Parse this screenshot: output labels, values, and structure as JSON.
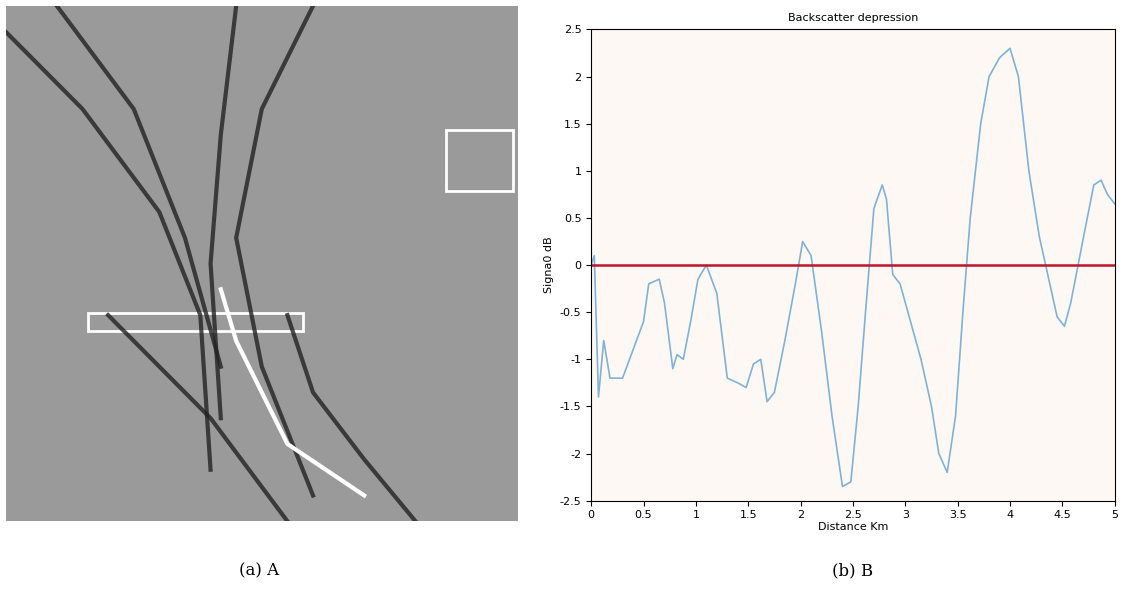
{
  "image_panel": {
    "caption": "(a) A"
  },
  "chart_data": {
    "type": "line",
    "title": "Backscatter depression",
    "caption": "(b) B",
    "x_label": "Distance Km",
    "y_label": "Signa0 dB",
    "xlim": [
      0,
      5
    ],
    "xticks": [
      0,
      0.5,
      1,
      1.5,
      2,
      2.5,
      3,
      3.5,
      4,
      4.5,
      5
    ],
    "ylim": [
      -2.5,
      2.5
    ],
    "yticks": [
      -2.5,
      -2,
      -1.5,
      -1,
      -0.5,
      0,
      0.5,
      1,
      1.5,
      2,
      2.5
    ],
    "grid": false,
    "series": [
      {
        "color": "#7fb2d8",
        "x": [
          0,
          0.03,
          0.07,
          0.12,
          0.18,
          0.3,
          0.4,
          0.5,
          0.55,
          0.65,
          0.7,
          0.78,
          0.82,
          0.88,
          0.95,
          1.02,
          1.1,
          1.2,
          1.3,
          1.4,
          1.48,
          1.55,
          1.62,
          1.68,
          1.75,
          1.85,
          1.95,
          2.02,
          2.1,
          2.2,
          2.3,
          2.4,
          2.48,
          2.55,
          2.62,
          2.7,
          2.78,
          2.82,
          2.88,
          2.95,
          3.05,
          3.15,
          3.25,
          3.32,
          3.4,
          3.48,
          3.55,
          3.62,
          3.72,
          3.8,
          3.9,
          4.0,
          4.08,
          4.18,
          4.28,
          4.38,
          4.45,
          4.52,
          4.58,
          4.65,
          4.72,
          4.8,
          4.87,
          4.93,
          5.0
        ],
        "values": [
          0,
          0.1,
          -1.4,
          -0.8,
          -1.2,
          -1.2,
          -0.9,
          -0.6,
          -0.2,
          -0.15,
          -0.4,
          -1.1,
          -0.95,
          -1.0,
          -0.6,
          -0.15,
          0.0,
          -0.3,
          -1.2,
          -1.25,
          -1.3,
          -1.05,
          -1.0,
          -1.45,
          -1.35,
          -0.8,
          -0.2,
          0.25,
          0.1,
          -0.7,
          -1.6,
          -2.35,
          -2.3,
          -1.5,
          -0.5,
          0.6,
          0.85,
          0.7,
          -0.1,
          -0.2,
          -0.6,
          -1.0,
          -1.5,
          -2.0,
          -2.2,
          -1.6,
          -0.5,
          0.5,
          1.5,
          2.0,
          2.2,
          2.3,
          2.0,
          1.0,
          0.3,
          -0.2,
          -0.55,
          -0.65,
          -0.4,
          0.0,
          0.4,
          0.85,
          0.9,
          0.75,
          0.65
        ]
      },
      {
        "color": "#c0142a",
        "x": [
          0,
          5
        ],
        "values": [
          0,
          0
        ]
      }
    ]
  }
}
